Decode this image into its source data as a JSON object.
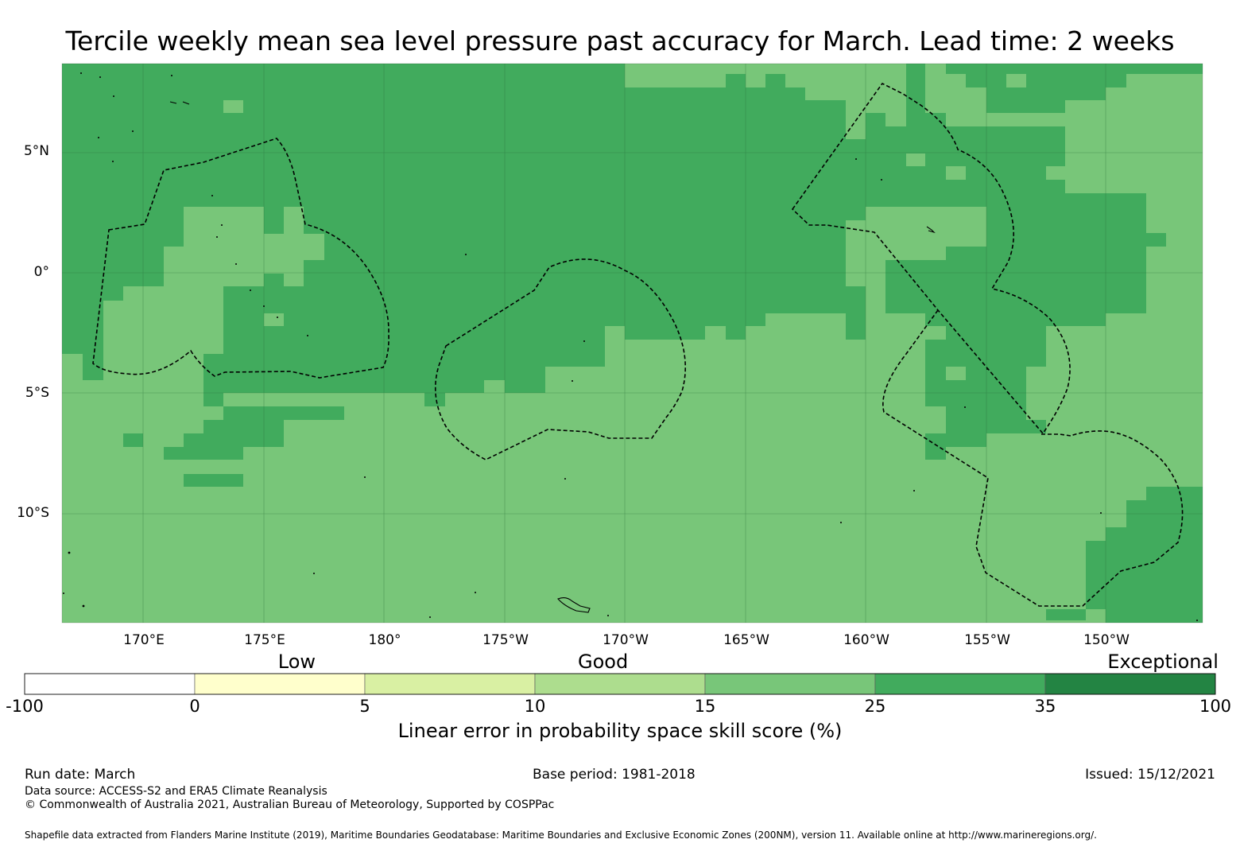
{
  "title": "Tercile weekly mean sea level pressure past accuracy for March. Lead time: 2 weeks",
  "map": {
    "latitude_labels": [
      "5°N",
      "0°",
      "5°S",
      "10°S"
    ],
    "longitude_labels": [
      "170°E",
      "175°E",
      "180°",
      "175°W",
      "170°W",
      "165°W",
      "160°W",
      "155°W",
      "150°W"
    ],
    "extent": {
      "lon_min": 166.6,
      "lon_max": 213.9,
      "lat_min": -14.6,
      "lat_max": 8.7
    },
    "regions": [
      {
        "name": "tuvalu-eez",
        "dominant_skill_class": "25-35"
      },
      {
        "name": "tokelau-eez",
        "dominant_skill_class": "15-35"
      },
      {
        "name": "kiribati-line-islands-eez",
        "dominant_skill_class": "25-35"
      },
      {
        "name": "cook-islands-eez",
        "dominant_skill_class": "15-25"
      }
    ],
    "colors": {
      "ocean_band_15_25": "#78c679",
      "ocean_band_25_35": "#41ab5d"
    }
  },
  "colorbar": {
    "categories": [
      {
        "label": "Low",
        "at": 3
      },
      {
        "label": "Good",
        "at": 12
      },
      {
        "label": "Exceptional",
        "at": 80
      }
    ],
    "ticks": [
      "-100",
      "0",
      "5",
      "10",
      "15",
      "25",
      "35",
      "100"
    ],
    "colors": [
      "#ffffff",
      "#ffffcc",
      "#d9f0a3",
      "#addd8e",
      "#78c679",
      "#41ab5d",
      "#238443"
    ],
    "label": "Linear error in probability space skill score (%)"
  },
  "footer": {
    "run_date": "Run date: March",
    "base_period": "Base period: 1981-2018",
    "issued": "Issued: 15/12/2021",
    "data_source": "Data source: ACCESS-S2 and ERA5 Climate Reanalysis",
    "copyright": "© Commonwealth of Australia 2021, Australian Bureau of Meteorology, Supported by COSPPac",
    "shapefile": "Shapefile data extracted from Flanders Marine Institute (2019), Maritime Boundaries Geodatabase: Maritime Boundaries and Exclusive Economic Zones (200NM), version 11. Available online at http://www.marineregions.org/."
  }
}
